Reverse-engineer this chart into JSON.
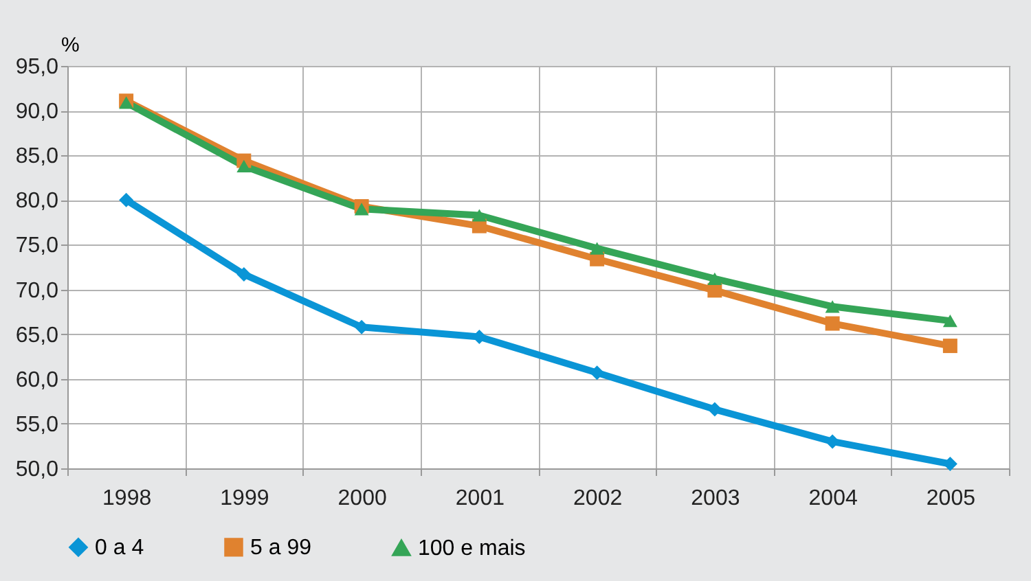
{
  "chart_data": {
    "type": "line",
    "ylabel": "%",
    "categories": [
      "1998",
      "1999",
      "2000",
      "2001",
      "2002",
      "2003",
      "2004",
      "2005"
    ],
    "series": [
      {
        "name": "0 a 4",
        "color": "#0a95d6",
        "marker": "diamond",
        "values": [
          80.0,
          71.7,
          65.8,
          64.7,
          60.7,
          56.6,
          53.0,
          50.5
        ]
      },
      {
        "name": "5 a 99",
        "color": "#e0822f",
        "marker": "square",
        "values": [
          91.1,
          84.4,
          79.3,
          77.1,
          73.4,
          69.9,
          66.2,
          63.7
        ]
      },
      {
        "name": "100 e mais",
        "color": "#35a557",
        "marker": "triangle",
        "values": [
          90.9,
          83.8,
          79.0,
          78.3,
          74.6,
          71.2,
          68.1,
          66.5
        ]
      }
    ],
    "ylim": [
      50,
      95
    ],
    "yticks": [
      {
        "value": 50,
        "label": "50,0"
      },
      {
        "value": 55,
        "label": "55,0"
      },
      {
        "value": 60,
        "label": "60,0"
      },
      {
        "value": 65,
        "label": "65,0"
      },
      {
        "value": 70,
        "label": "70,0"
      },
      {
        "value": 75,
        "label": "75,0"
      },
      {
        "value": 80,
        "label": "80,0"
      },
      {
        "value": 85,
        "label": "85,0"
      },
      {
        "value": 90,
        "label": "90,0"
      },
      {
        "value": 95,
        "label": "95,0"
      }
    ],
    "grid": true,
    "legend": "bottom",
    "line_style": "solid"
  }
}
